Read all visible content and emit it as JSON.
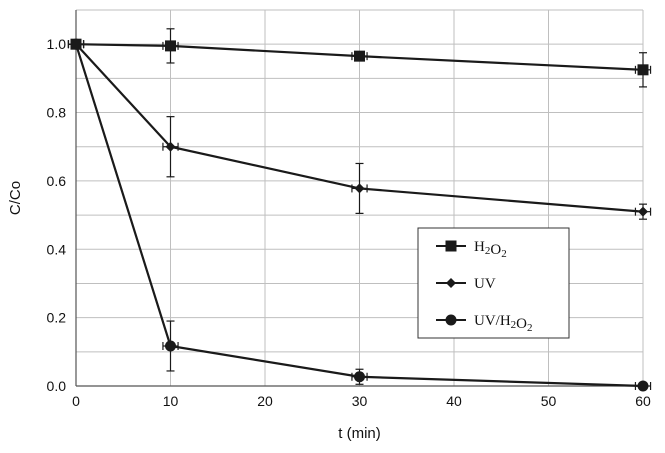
{
  "chart_data": {
    "type": "line",
    "xlabel": "t (min)",
    "ylabel": "C/Co",
    "xlim": [
      0,
      60
    ],
    "ylim": [
      0,
      1.1
    ],
    "x_ticks": [
      "0",
      "10",
      "20",
      "30",
      "40",
      "50",
      "60"
    ],
    "y_ticks": [
      "0.0",
      "0.2",
      "0.4",
      "0.6",
      "0.8",
      "1.0"
    ],
    "grid": true,
    "legend_position": "center-right",
    "colors": {
      "line": "#1a1a1a",
      "grid": "#bfbfbf"
    },
    "series": [
      {
        "name_parts": [
          "H",
          "2",
          "O",
          "2"
        ],
        "marker": "square",
        "x": [
          0,
          10,
          30,
          60
        ],
        "y": [
          1.0,
          0.995,
          0.965,
          0.925
        ],
        "yerr": [
          0.005,
          0.05,
          0.01,
          0.05
        ],
        "xerr": [
          0.8,
          0.8,
          0.8,
          0.8
        ]
      },
      {
        "name_parts": [
          "UV"
        ],
        "marker": "diamond",
        "x": [
          0,
          10,
          30,
          60
        ],
        "y": [
          1.0,
          0.7,
          0.578,
          0.51
        ],
        "yerr": [
          0.005,
          0.088,
          0.073,
          0.022
        ],
        "xerr": [
          0.8,
          0.8,
          0.8,
          0.8
        ]
      },
      {
        "name_parts": [
          "UV/H",
          "2",
          "O",
          "2"
        ],
        "marker": "circle",
        "x": [
          0,
          10,
          30,
          60
        ],
        "y": [
          1.0,
          0.117,
          0.027,
          0.0
        ],
        "yerr": [
          0.005,
          0.073,
          0.022,
          0.003
        ],
        "xerr": [
          0.8,
          0.8,
          0.8,
          0.8
        ]
      }
    ]
  }
}
